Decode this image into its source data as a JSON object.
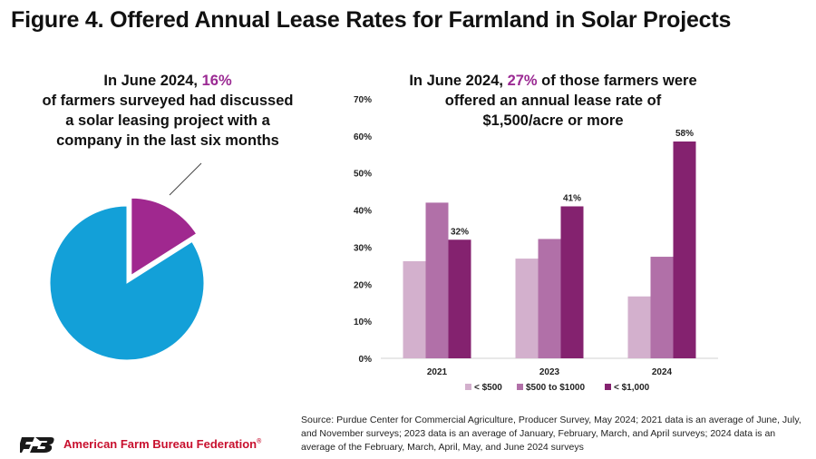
{
  "title": "Figure 4. Offered Annual Lease Rates for Farmland in Solar Projects",
  "pie_caption": {
    "pre": "In June 2024, ",
    "highlight": "16%",
    "post": "of farmers surveyed had discussed a solar leasing project with a company in the last six months"
  },
  "bar_caption": {
    "pre": "In June 2024, ",
    "highlight": "27%",
    "post": " of those farmers were offered an annual lease rate of $1,500/acre or more"
  },
  "source": "Source: Purdue Center for Commercial Agriculture, Producer Survey, May 2024; 2021 data is an average of June, July, and November surveys; 2023 data is an average of January, February, March, and April surveys; 2024 data is an average of the February, March, April, May, and June 2024 surveys",
  "organization": "American Farm Bureau Federation",
  "organization_mark": "®",
  "chart_data": [
    {
      "type": "pie",
      "slices": [
        {
          "value": 16,
          "color": "#a0288f",
          "exploded": true
        },
        {
          "value": 84,
          "color": "#13a0d8",
          "exploded": false
        }
      ]
    },
    {
      "type": "bar",
      "categories": [
        "2021",
        "2023",
        "2024"
      ],
      "ylim": [
        0,
        70
      ],
      "yticks": [
        "0%",
        "10%",
        "20%",
        "30%",
        "40%",
        "50%",
        "60%",
        "70%"
      ],
      "legend_position": "bottom",
      "series": [
        {
          "name": "< $500",
          "color": "#d3b0cd",
          "values": [
            26.2,
            26.9,
            16.7
          ],
          "labels": [
            "",
            "",
            ""
          ]
        },
        {
          "name": "$500 to $1000",
          "color": "#b170a8",
          "values": [
            42,
            32.2,
            27.4
          ],
          "labels": [
            "",
            "",
            ""
          ]
        },
        {
          "name": "< $1,000",
          "color": "#84226f",
          "values": [
            32,
            41,
            58.5
          ],
          "labels": [
            "32%",
            "41%",
            "58%"
          ]
        }
      ]
    }
  ]
}
